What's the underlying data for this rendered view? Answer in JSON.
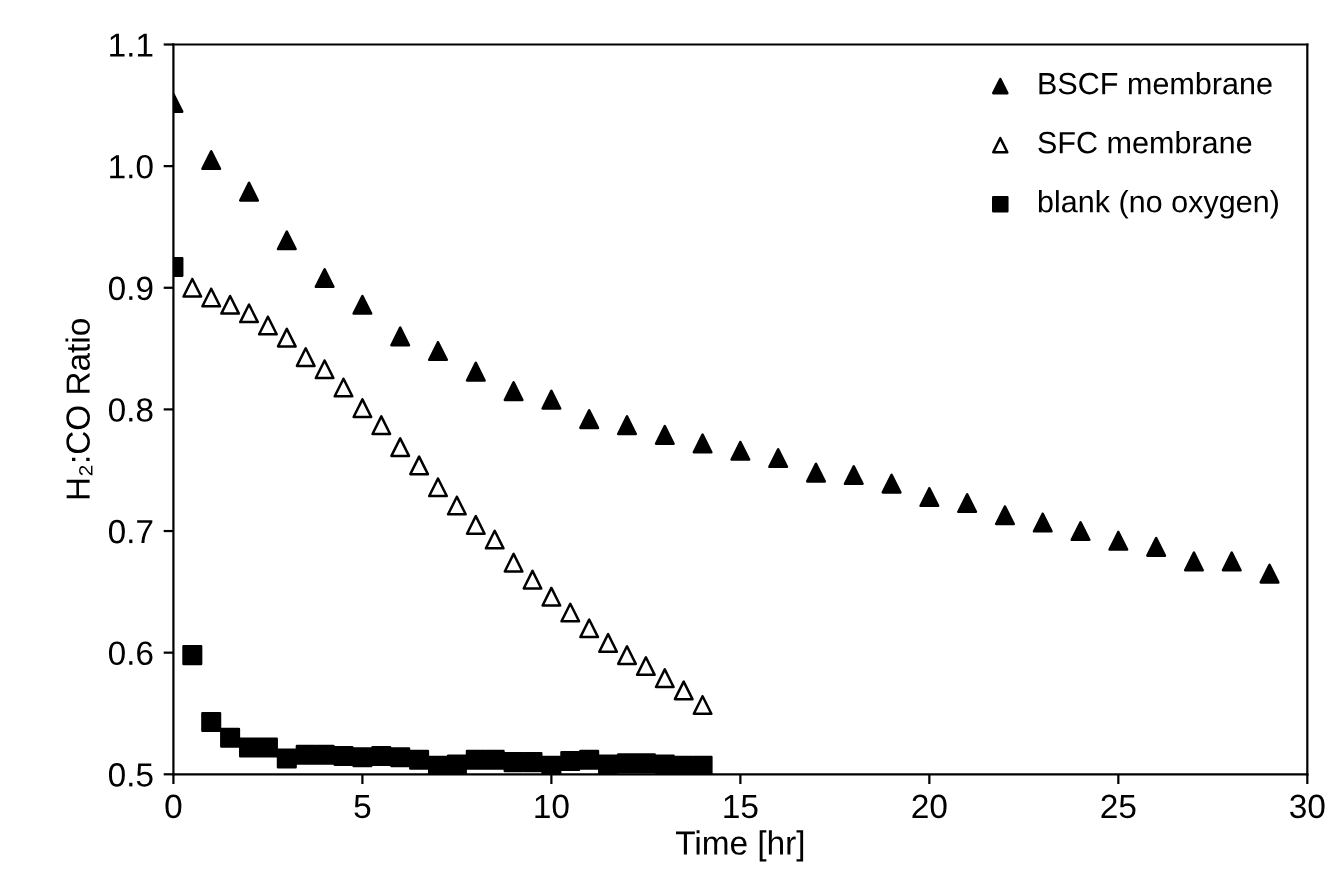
{
  "chart_data": {
    "type": "scatter",
    "xlabel": "Time [hr]",
    "ylabel": "H₂:CO Ratio",
    "xlim": [
      0,
      30
    ],
    "ylim": [
      0.5,
      1.1
    ],
    "xticks": [
      0,
      5,
      10,
      15,
      20,
      25,
      30
    ],
    "yticks": [
      {
        "value": 0.5,
        "label": "0.5"
      },
      {
        "value": 0.6,
        "label": "0.6"
      },
      {
        "value": 0.7,
        "label": "0.7"
      },
      {
        "value": 0.8,
        "label": "0.8"
      },
      {
        "value": 0.9,
        "label": "0.9"
      },
      {
        "value": 1.0,
        "label": "1.0"
      },
      {
        "value": 1.1,
        "label": "1.1"
      }
    ],
    "grid": false,
    "legend": "top right",
    "series": [
      {
        "name": "BSCF membrane",
        "color": "#000000",
        "marker": "triangle",
        "x": [
          0,
          1,
          2,
          3,
          4,
          5,
          6,
          7,
          8,
          9,
          10,
          11,
          12,
          13,
          14,
          15,
          16,
          17,
          18,
          19,
          20,
          21,
          22,
          23,
          24,
          25,
          26,
          27,
          28,
          29
        ],
        "values": [
          1.052,
          1.005,
          0.979,
          0.939,
          0.908,
          0.886,
          0.86,
          0.848,
          0.831,
          0.815,
          0.808,
          0.792,
          0.787,
          0.779,
          0.772,
          0.766,
          0.76,
          0.748,
          0.746,
          0.739,
          0.728,
          0.723,
          0.713,
          0.707,
          0.7,
          0.692,
          0.687,
          0.675,
          0.675,
          0.665
        ]
      },
      {
        "name": "SFC membrane",
        "color": "#ffffff",
        "marker": "triangle",
        "x": [
          0.5,
          1,
          1.5,
          2,
          2.5,
          3,
          3.5,
          4,
          4.5,
          5,
          5.5,
          6,
          6.5,
          7,
          7.5,
          8,
          8.5,
          9,
          9.5,
          10,
          10.5,
          11,
          11.5,
          12,
          12.5,
          13,
          13.5,
          14
        ],
        "values": [
          0.9,
          0.892,
          0.886,
          0.879,
          0.869,
          0.859,
          0.843,
          0.833,
          0.818,
          0.801,
          0.787,
          0.769,
          0.754,
          0.736,
          0.721,
          0.705,
          0.693,
          0.674,
          0.66,
          0.646,
          0.633,
          0.62,
          0.608,
          0.598,
          0.589,
          0.579,
          0.569,
          0.557
        ]
      },
      {
        "name": "blank (no oxygen)",
        "color": "#000000",
        "marker": "square",
        "x": [
          0,
          0.5,
          1,
          1.5,
          2,
          2.5,
          3,
          3.5,
          4,
          4.5,
          5,
          5.5,
          6,
          6.5,
          7,
          7.5,
          8,
          8.5,
          9,
          9.5,
          10,
          10.5,
          11,
          11.5,
          12,
          12.5,
          13,
          13.5,
          14
        ],
        "values": [
          0.917,
          0.598,
          0.543,
          0.53,
          0.522,
          0.522,
          0.513,
          0.516,
          0.516,
          0.515,
          0.514,
          0.515,
          0.514,
          0.512,
          0.507,
          0.508,
          0.512,
          0.512,
          0.51,
          0.51,
          0.507,
          0.511,
          0.512,
          0.508,
          0.509,
          0.509,
          0.508,
          0.507,
          0.507
        ]
      }
    ]
  }
}
